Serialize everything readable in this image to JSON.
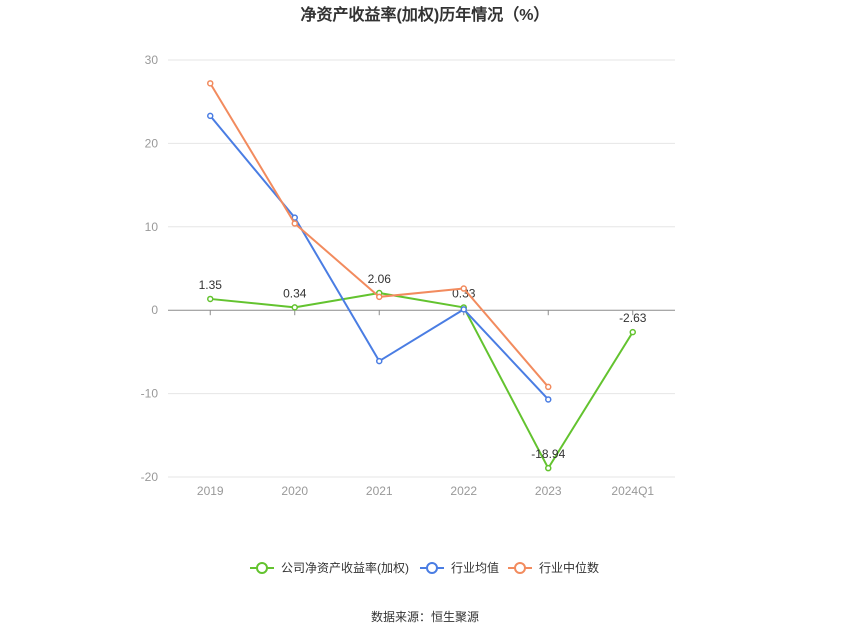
{
  "source": "数据来源：恒生聚源",
  "colors": {
    "grid": "#e6e6e6",
    "axis": "#8c8c8c",
    "background": "#ffffff"
  },
  "chart_data": {
    "type": "line",
    "title": "净资产收益率(加权)历年情况（%）",
    "xlabel": "",
    "ylabel": "",
    "categories": [
      "2019",
      "2020",
      "2021",
      "2022",
      "2023",
      "2024Q1"
    ],
    "ylim": [
      -20,
      30
    ],
    "yticks": [
      30,
      20,
      10,
      0,
      -10,
      -20
    ],
    "grid": true,
    "legend": "bottom-center",
    "series": [
      {
        "name": "公司净资产收益率(加权)",
        "color": "#63c32f",
        "data_labels": true,
        "values": [
          1.35,
          0.34,
          2.06,
          0.33,
          -18.94,
          -2.63
        ]
      },
      {
        "name": "行业均值",
        "color": "#4a7de3",
        "data_labels": false,
        "values": [
          23.3,
          11.1,
          -6.1,
          0.1,
          -10.7,
          null
        ]
      },
      {
        "name": "行业中位数",
        "color": "#f28b5e",
        "data_labels": false,
        "values": [
          27.2,
          10.4,
          1.6,
          2.6,
          -9.2,
          null
        ]
      }
    ]
  }
}
